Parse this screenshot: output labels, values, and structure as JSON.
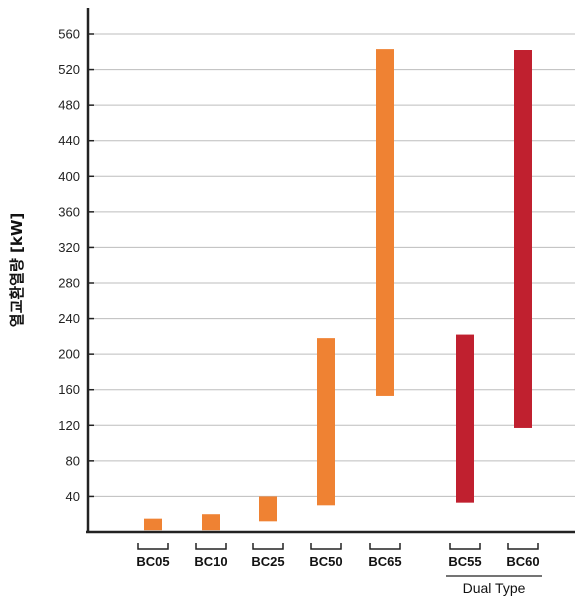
{
  "chart_data": {
    "type": "bar",
    "subtype": "floating-range",
    "ylabel": "열교환열량 [kW]",
    "ylim": [
      0,
      590
    ],
    "yticks": [
      40,
      80,
      120,
      160,
      200,
      240,
      280,
      320,
      360,
      400,
      440,
      480,
      520,
      560
    ],
    "grid": true,
    "categories": [
      "BC05",
      "BC10",
      "BC25",
      "BC50",
      "BC65",
      "BC55",
      "BC60"
    ],
    "ranges": [
      {
        "category": "BC05",
        "min": 2,
        "max": 15
      },
      {
        "category": "BC10",
        "min": 2,
        "max": 20
      },
      {
        "category": "BC25",
        "min": 12,
        "max": 40
      },
      {
        "category": "BC50",
        "min": 30,
        "max": 218
      },
      {
        "category": "BC65",
        "min": 153,
        "max": 543
      },
      {
        "category": "BC55",
        "min": 33,
        "max": 222
      },
      {
        "category": "BC60",
        "min": 117,
        "max": 542
      }
    ],
    "colors": {
      "standard": "#ef8233",
      "dual": "#c0202f",
      "axis": "#222222",
      "grid": "#bdbdbd"
    },
    "bar_color_keys": [
      "standard",
      "standard",
      "standard",
      "standard",
      "standard",
      "dual",
      "dual"
    ],
    "group_label": {
      "text": "Dual Type",
      "categories": [
        "BC55",
        "BC60"
      ]
    }
  }
}
